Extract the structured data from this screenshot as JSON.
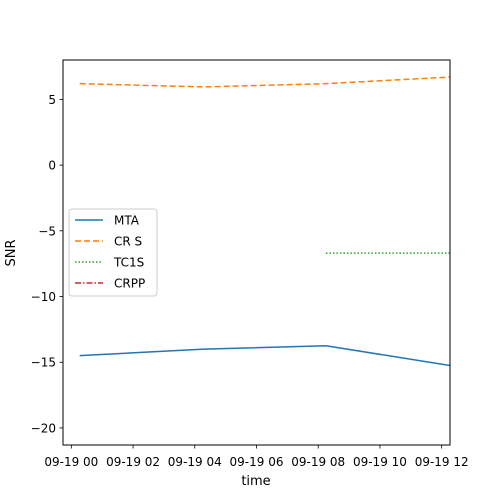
{
  "chart_data": {
    "type": "line",
    "title": "",
    "xlabel": "time",
    "ylabel": "SNR",
    "x_tick_labels": [
      "09-19 00",
      "09-19 02",
      "09-19 04",
      "09-19 06",
      "09-19 08",
      "09-19 10",
      "09-19 12"
    ],
    "x_tick_hours": [
      0,
      2,
      4,
      6,
      8,
      10,
      12
    ],
    "xlim_hours": [
      -0.27,
      12.27
    ],
    "y_ticks": [
      -20,
      -15,
      -10,
      -5,
      0,
      5
    ],
    "ylim": [
      -21.3,
      8.0
    ],
    "legend_position": "center-left",
    "grid": false,
    "series": [
      {
        "name": "MTA",
        "color": "#1f77b4",
        "dash": "solid",
        "x_hours": [
          0.27,
          4.3,
          8.25,
          12.27
        ],
        "values": [
          -14.5,
          -14.0,
          -13.75,
          -15.25
        ]
      },
      {
        "name": "CR S",
        "color": "#ff7f0e",
        "dash": "dashed",
        "x_hours": [
          0.27,
          4.3,
          8.25,
          12.27
        ],
        "values": [
          6.2,
          5.95,
          6.2,
          6.7
        ]
      },
      {
        "name": "TC1S",
        "color": "#2ca02c",
        "dash": "dotted",
        "x_hours": [
          8.25,
          12.27
        ],
        "values": [
          -6.7,
          -6.7
        ]
      },
      {
        "name": "CRPP",
        "color": "#d62728",
        "dash": "dashdot",
        "x_hours": [],
        "values": []
      }
    ]
  }
}
